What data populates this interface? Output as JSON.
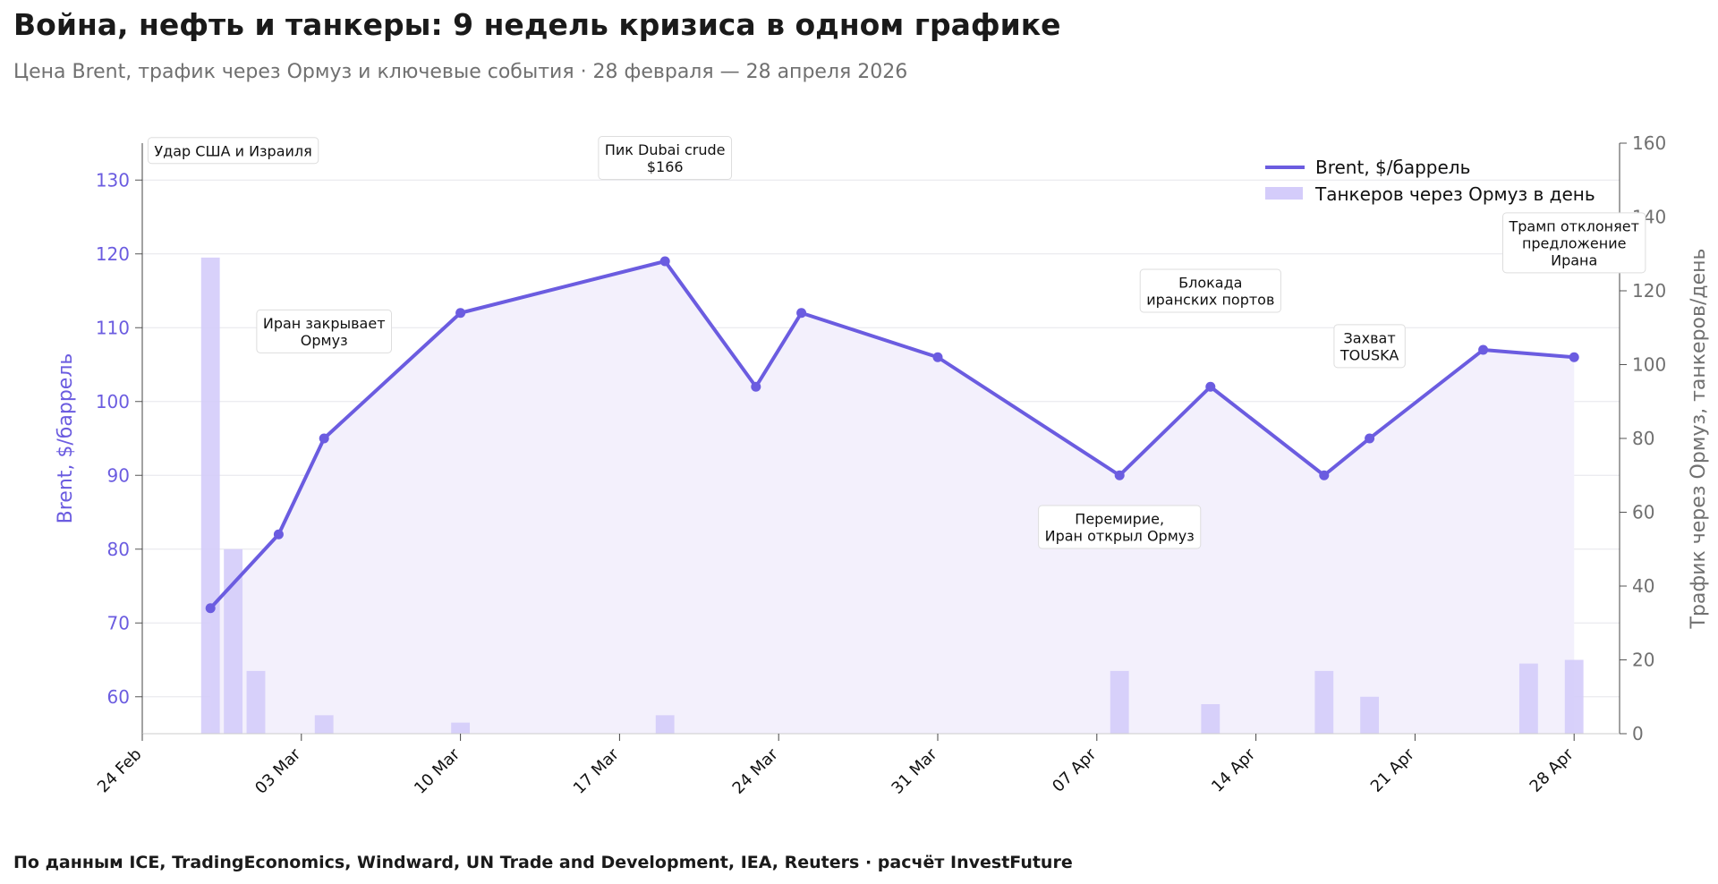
{
  "header": {
    "title": "Война, нефть и танкеры: 9 недель кризиса в одном графике",
    "subtitle": "Цена Brent, трафик через Ормуз и ключевые события · 28 февраля — 28 апреля 2026"
  },
  "footer": {
    "source": "По данным ICE, TradingEconomics, Windward, UN Trade and Development, IEA, Reuters · расчёт InvestFuture"
  },
  "colors": {
    "brent_line": "#6b5ce0",
    "tanker_bars": "#d4ccfa",
    "fill_area": "#f3f0fc",
    "right_axis": "#707070"
  },
  "chart_data": {
    "type": "line",
    "title": "Война, нефть и танкеры: 9 недель кризиса в одном графике",
    "subtitle": "Цена Brent, трафик через Ормуз и ключевые события · 28 февраля — 28 апреля 2026",
    "x_range": [
      "2026-02-24",
      "2026-04-30"
    ],
    "x_ticks": [
      {
        "date": "2026-02-24",
        "label": "24 Feb"
      },
      {
        "date": "2026-03-03",
        "label": "03 Mar"
      },
      {
        "date": "2026-03-10",
        "label": "10 Mar"
      },
      {
        "date": "2026-03-17",
        "label": "17 Mar"
      },
      {
        "date": "2026-03-24",
        "label": "24 Mar"
      },
      {
        "date": "2026-03-31",
        "label": "31 Mar"
      },
      {
        "date": "2026-04-07",
        "label": "07 Apr"
      },
      {
        "date": "2026-04-14",
        "label": "14 Apr"
      },
      {
        "date": "2026-04-21",
        "label": "21 Apr"
      },
      {
        "date": "2026-04-28",
        "label": "28 Apr"
      }
    ],
    "y_left": {
      "label": "Brent, $/баррель",
      "range": [
        55,
        135
      ],
      "ticks": [
        60,
        70,
        80,
        90,
        100,
        110,
        120,
        130
      ]
    },
    "y_right": {
      "label": "Трафик через Ормуз, танкеров/день",
      "range": [
        0,
        160
      ],
      "ticks": [
        0,
        20,
        40,
        60,
        80,
        100,
        120,
        140,
        160
      ]
    },
    "grid": true,
    "legend_position": "top-right",
    "series": [
      {
        "name": "Brent, $/баррель",
        "kind": "line",
        "axis": "left",
        "points": [
          {
            "x": "2026-02-27",
            "y": 72
          },
          {
            "x": "2026-03-02",
            "y": 82
          },
          {
            "x": "2026-03-04",
            "y": 95
          },
          {
            "x": "2026-03-10",
            "y": 112
          },
          {
            "x": "2026-03-19",
            "y": 119
          },
          {
            "x": "2026-03-23",
            "y": 102
          },
          {
            "x": "2026-03-25",
            "y": 112
          },
          {
            "x": "2026-03-31",
            "y": 106
          },
          {
            "x": "2026-04-08",
            "y": 90
          },
          {
            "x": "2026-04-12",
            "y": 102
          },
          {
            "x": "2026-04-17",
            "y": 90
          },
          {
            "x": "2026-04-19",
            "y": 95
          },
          {
            "x": "2026-04-24",
            "y": 107
          },
          {
            "x": "2026-04-28",
            "y": 106
          }
        ]
      },
      {
        "name": "Танкеров через Ормуз в день",
        "kind": "bar",
        "axis": "right",
        "points": [
          {
            "x": "2026-02-27",
            "y": 129
          },
          {
            "x": "2026-02-28",
            "y": 50
          },
          {
            "x": "2026-03-01",
            "y": 17
          },
          {
            "x": "2026-03-04",
            "y": 5
          },
          {
            "x": "2026-03-10",
            "y": 3
          },
          {
            "x": "2026-03-19",
            "y": 5
          },
          {
            "x": "2026-04-08",
            "y": 17
          },
          {
            "x": "2026-04-12",
            "y": 8
          },
          {
            "x": "2026-04-17",
            "y": 17
          },
          {
            "x": "2026-04-19",
            "y": 10
          },
          {
            "x": "2026-04-26",
            "y": 19
          },
          {
            "x": "2026-04-28",
            "y": 20
          }
        ]
      }
    ],
    "annotations": [
      {
        "lines": [
          "Удар США и Израиля"
        ],
        "x": "2026-02-28",
        "y": 134
      },
      {
        "lines": [
          "Пик Dubai crude",
          "$166"
        ],
        "x": "2026-03-19",
        "y": 133
      },
      {
        "lines": [
          "Иран закрывает",
          "Ормуз"
        ],
        "x": "2026-03-04",
        "y": 109.5
      },
      {
        "lines": [
          "Блокада",
          "иранских портов"
        ],
        "x": "2026-04-12",
        "y": 115
      },
      {
        "lines": [
          "Захват",
          "TOUSKA"
        ],
        "x": "2026-04-19",
        "y": 107.5
      },
      {
        "lines": [
          "Трамп отклоняет",
          "предложение",
          "Ирана"
        ],
        "x": "2026-04-28",
        "y": 121.5
      },
      {
        "lines": [
          "Перемирие,",
          "Иран открыл Ормуз"
        ],
        "x": "2026-04-08",
        "y": 83
      }
    ]
  }
}
